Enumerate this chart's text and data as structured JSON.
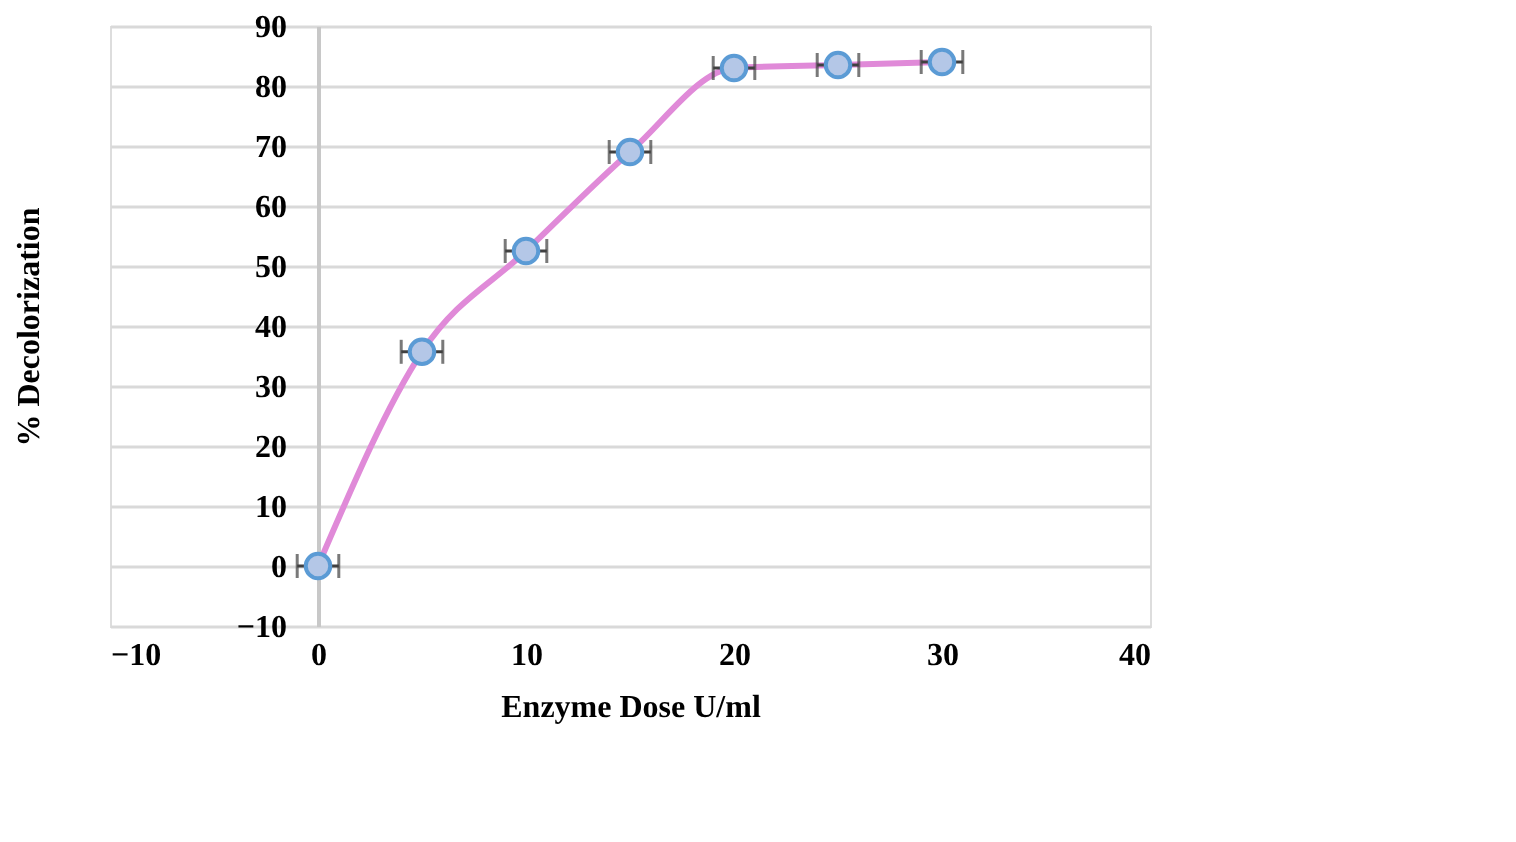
{
  "chart_data": {
    "type": "line",
    "xlabel": "Enzyme Dose U/ml",
    "ylabel": "% Decolorization",
    "x": [
      0,
      5,
      10,
      15,
      20,
      25,
      30
    ],
    "series": [
      {
        "color": "#e08ad8",
        "values": [
          0,
          35.7,
          52.5,
          69,
          83,
          83.5,
          84
        ],
        "xerrors": [
          1,
          1,
          1,
          1,
          1,
          1,
          1
        ]
      }
    ],
    "xlim": [
      -10,
      40
    ],
    "xticks": [
      -10,
      0,
      10,
      20,
      30,
      40
    ],
    "ylim": [
      -10,
      90
    ],
    "yticks": [
      -10,
      0,
      10,
      20,
      30,
      40,
      50,
      60,
      70,
      80,
      90
    ],
    "grid": "y",
    "marker": "circle",
    "line_style": "solid"
  }
}
